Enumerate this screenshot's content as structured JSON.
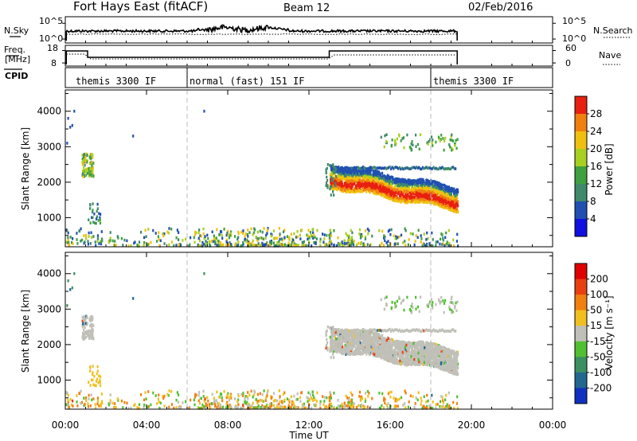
{
  "header": {
    "title": "Fort Hays East (fitACF)",
    "beam": "Beam 12",
    "date": "02/Feb/2016"
  },
  "noise_panel": {
    "left_label": "N.Sky",
    "right_label": "N.Search",
    "ticks": [
      "10^5",
      "10^0"
    ]
  },
  "freq_panel": {
    "left_label_1": "Freq.",
    "left_label_2": "[MHz]",
    "left_ticks": [
      "18",
      "8"
    ],
    "right_ticks": [
      "60",
      "0"
    ],
    "right_label": "Nave"
  },
  "cpid_panel": {
    "label": "CPID",
    "segments": [
      {
        "text": "themis 3300 IF",
        "start_hour": 0
      },
      {
        "text": "normal (fast) 151 IF",
        "start_hour": 6
      },
      {
        "text": "themis 3300 IF",
        "start_hour": 18
      }
    ]
  },
  "chart_data": [
    {
      "type": "heatmap",
      "name": "power",
      "ylabel": "Slant Range [km]",
      "y_ticks": [
        1000,
        2000,
        3000,
        4000
      ],
      "ylim": [
        180,
        4600
      ],
      "xlim": [
        0,
        24
      ],
      "colorbar_label": "Power [dB]",
      "colorbar_ticks": [
        "28",
        "24",
        "20",
        "16",
        "12",
        "8",
        "4"
      ],
      "colorbar_colors": [
        "#1010e0",
        "#2050b0",
        "#3f8a6a",
        "#3fa03f",
        "#a8d020",
        "#f0c010",
        "#f08010",
        "#e82010"
      ]
    },
    {
      "type": "heatmap",
      "name": "velocity",
      "ylabel": "Slant Range [km]",
      "y_ticks": [
        1000,
        2000,
        3000,
        4000
      ],
      "ylim": [
        180,
        4600
      ],
      "xlim": [
        0,
        24
      ],
      "colorbar_label": "Velocity [m s⁻¹]",
      "colorbar_ticks": [
        "200",
        "100",
        "50",
        "15",
        "-15",
        "-50",
        "-100",
        "-200"
      ],
      "colorbar_colors": [
        "#1030c0",
        "#206890",
        "#3a9060",
        "#50c030",
        "#c0c0b8",
        "#f0c020",
        "#f08010",
        "#e84010",
        "#e00000"
      ]
    }
  ],
  "x_axis": {
    "label": "Time UT",
    "ticks": [
      "00:00",
      "04:00",
      "08:00",
      "12:00",
      "16:00",
      "20:00",
      "00:00"
    ]
  }
}
